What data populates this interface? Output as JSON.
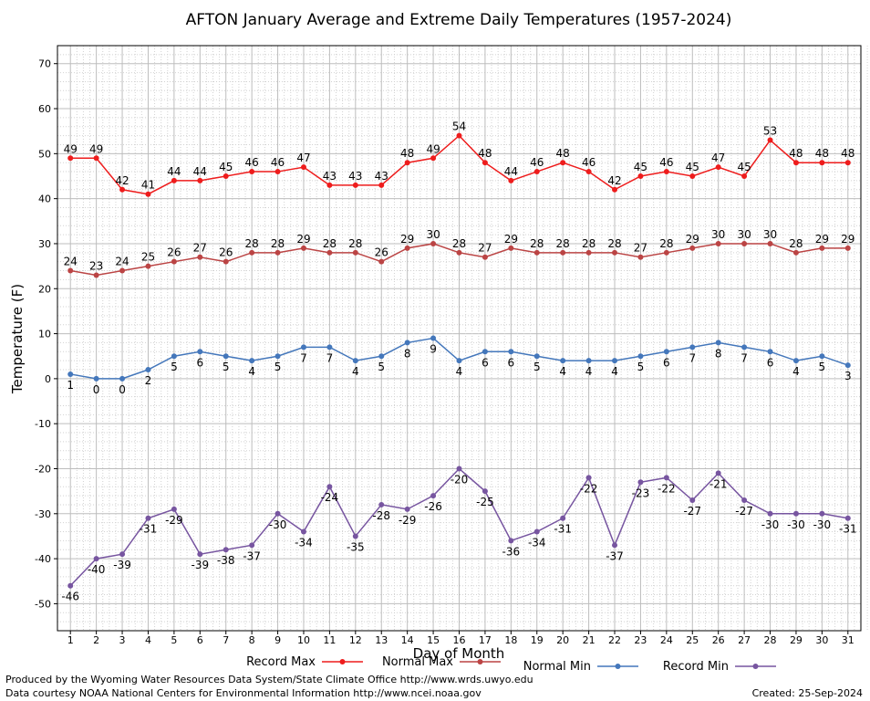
{
  "footer": {
    "produced_by": "Produced by the Wyoming Water Resources Data System/State Climate Office http://www.wrds.uwyo.edu",
    "courtesy": "Data courtesy NOAA National Centers for Environmental Information http://www.ncei.noaa.gov",
    "created": "Created: 25-Sep-2024"
  },
  "chart_data": {
    "type": "line",
    "title": "AFTON January Average and Extreme Daily Temperatures (1957-2024)",
    "xlabel": "Day of Month",
    "ylabel": "Temperature (F)",
    "x": [
      1,
      2,
      3,
      4,
      5,
      6,
      7,
      8,
      9,
      10,
      11,
      12,
      13,
      14,
      15,
      16,
      17,
      18,
      19,
      20,
      21,
      22,
      23,
      24,
      25,
      26,
      27,
      28,
      29,
      30,
      31
    ],
    "xlim": [
      0.5,
      31.5
    ],
    "ylim": [
      -56,
      74
    ],
    "yticks": [
      -50,
      -40,
      -30,
      -20,
      -10,
      0,
      10,
      20,
      30,
      40,
      50,
      60,
      70
    ],
    "grid": true,
    "legend_position": "bottom",
    "series": [
      {
        "name": "Record Max",
        "color": "#ee1c1c",
        "label_position": "above",
        "values": [
          49,
          49,
          42,
          41,
          44,
          44,
          45,
          46,
          46,
          47,
          43,
          43,
          43,
          48,
          49,
          54,
          48,
          44,
          46,
          48,
          46,
          42,
          45,
          46,
          45,
          47,
          45,
          53,
          48,
          48,
          48
        ]
      },
      {
        "name": "Normal Max",
        "color": "#bb4444",
        "label_position": "above",
        "values": [
          24,
          23,
          24,
          25,
          26,
          27,
          26,
          28,
          28,
          29,
          28,
          28,
          26,
          29,
          30,
          28,
          27,
          29,
          28,
          28,
          28,
          28,
          27,
          28,
          29,
          30,
          30,
          30,
          28,
          29,
          29
        ]
      },
      {
        "name": "Normal Min",
        "color": "#4477bb",
        "label_position": "below",
        "values": [
          1,
          0,
          0,
          2,
          5,
          6,
          5,
          4,
          5,
          7,
          7,
          4,
          5,
          8,
          9,
          4,
          6,
          6,
          5,
          4,
          4,
          4,
          5,
          6,
          7,
          8,
          7,
          6,
          4,
          5,
          3
        ]
      },
      {
        "name": "Record Min",
        "color": "#7755a0",
        "label_position": "below",
        "values": [
          -46,
          -40,
          -39,
          -31,
          -29,
          -39,
          -38,
          -37,
          -30,
          -34,
          -24,
          -35,
          -28,
          -29,
          -26,
          -20,
          -25,
          -36,
          -34,
          -31,
          -22,
          -37,
          -23,
          -22,
          -27,
          -21,
          -27,
          -30,
          -30,
          -30,
          -31
        ]
      }
    ]
  }
}
